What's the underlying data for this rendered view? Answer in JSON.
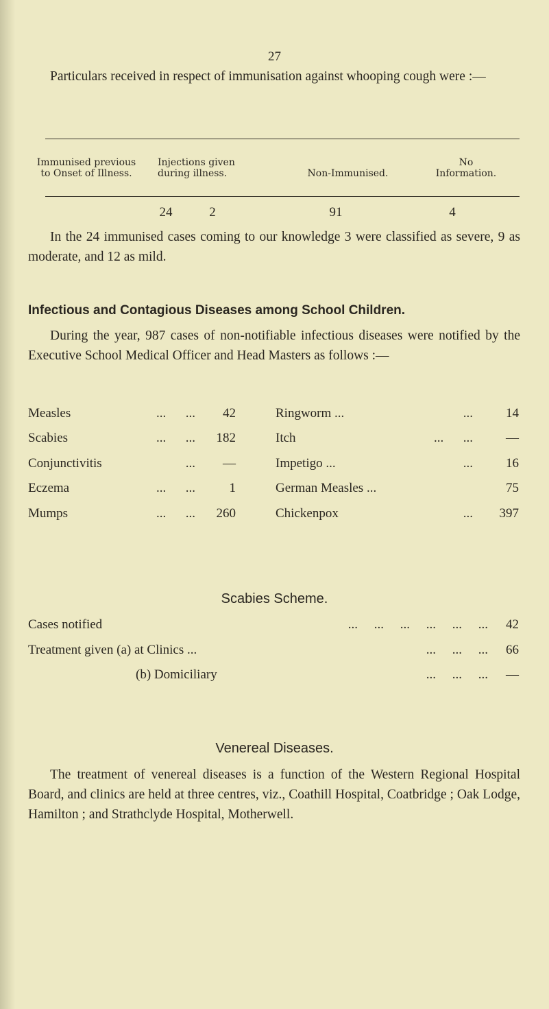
{
  "page_number": "27",
  "intro": "Particulars received in respect of immunisation against whooping cough were :—",
  "whooping_table": {
    "headers": [
      "Immunised previous\nto Onset of Illness.",
      "Injections given\nduring illness.",
      "Non-Immunised.",
      "No\nInformation."
    ],
    "values": [
      "24",
      "2",
      "91",
      "4"
    ]
  },
  "immunised_note": "In the 24 immunised cases coming to our knowledge 3 were classified as severe, 9 as moderate, and 12 as mild.",
  "infectious": {
    "heading": "Infectious and Contagious Diseases among School Children.",
    "text": "During the year, 987 cases of non-notifiable infectious diseases were notified by the Executive School Medical Officer and Head Masters as follows :—",
    "left": [
      {
        "name": "Measles",
        "dots": "...      ...",
        "value": "42"
      },
      {
        "name": "Scabies",
        "dots": "...      ...",
        "value": "182"
      },
      {
        "name": "Conjunctivitis",
        "dots": "...",
        "value": "—"
      },
      {
        "name": "Eczema",
        "dots": "...      ...",
        "value": "1"
      },
      {
        "name": "Mumps",
        "dots": "...      ...",
        "value": "260"
      }
    ],
    "right": [
      {
        "name": "Ringworm ...",
        "dots": "...",
        "value": "14"
      },
      {
        "name": "Itch",
        "dots": "...      ...",
        "value": "—"
      },
      {
        "name": "Impetigo ...",
        "dots": "...",
        "value": "16"
      },
      {
        "name": "German Measles ...",
        "dots": "",
        "value": "75"
      },
      {
        "name": "Chickenpox",
        "dots": "...",
        "value": "397"
      }
    ]
  },
  "scabies": {
    "heading": "Scabies Scheme.",
    "rows": [
      {
        "label": "Cases notified",
        "dots": "...     ...     ...     ...     ...     ...",
        "value": "42"
      },
      {
        "label": "Treatment given (a) at Clinics ...",
        "dots": "...     ...     ...",
        "value": "66"
      },
      {
        "label": "(b) Domiciliary",
        "dots": "...     ...     ...",
        "value": "—"
      }
    ]
  },
  "venereal": {
    "heading": "Venereal Diseases.",
    "text": "The treatment of venereal diseases is a function of the Western Regional Hospital Board, and clinics are held at three centres, viz., Coathill Hospital, Coatbridge ; Oak Lodge, Hamilton ; and Strathclyde Hospital, Motherwell."
  }
}
